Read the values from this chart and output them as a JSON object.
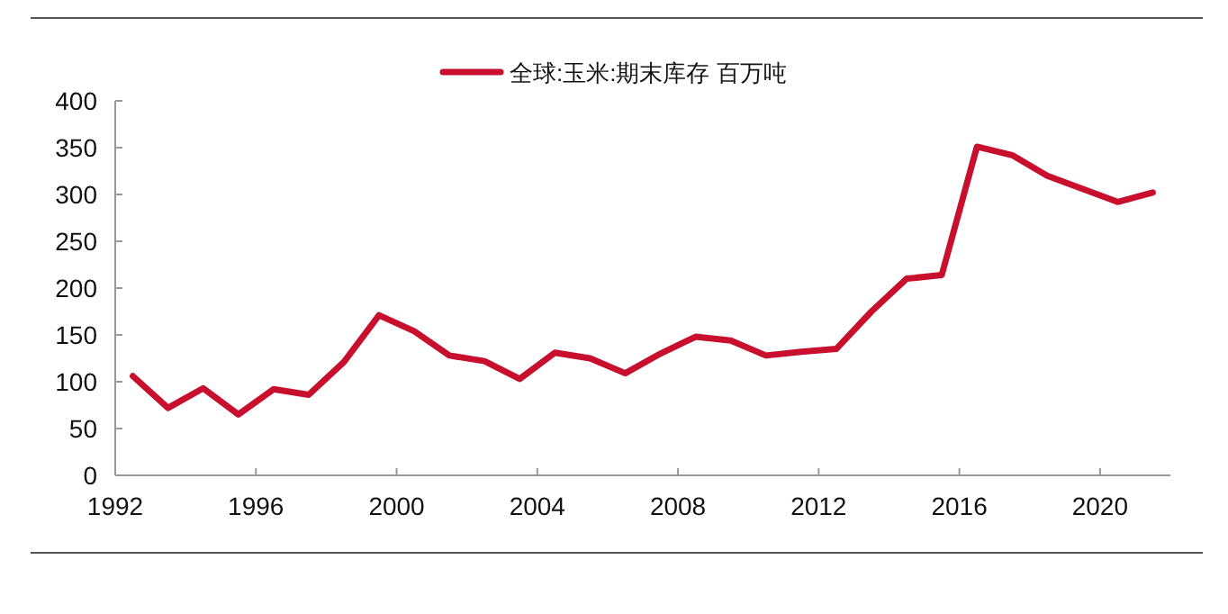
{
  "chart_data": {
    "type": "line",
    "x": [
      1992.5,
      1993.5,
      1994.5,
      1995.5,
      1996.5,
      1997.5,
      1998.5,
      1999.5,
      2000.5,
      2001.5,
      2002.5,
      2003.5,
      2004.5,
      2005.5,
      2006.5,
      2007.5,
      2008.5,
      2009.5,
      2010.5,
      2011.5,
      2012.5,
      2013.5,
      2014.5,
      2015.5,
      2016.5,
      2017.5,
      2018.5,
      2019.5,
      2020.5,
      2021.5
    ],
    "series": [
      {
        "name": "全球:玉米:期末库存 百万吨",
        "color": "#c8102e",
        "values": [
          106,
          72,
          93,
          65,
          92,
          86,
          121,
          171,
          154,
          128,
          122,
          103,
          131,
          125,
          109,
          130,
          148,
          144,
          128,
          132,
          135,
          175,
          210,
          214,
          351,
          342,
          320,
          306,
          292,
          302
        ]
      }
    ],
    "xlim": [
      1992,
      2022
    ],
    "xticks": [
      1992,
      1996,
      2000,
      2004,
      2008,
      2012,
      2016,
      2020
    ],
    "ylim": [
      0,
      400
    ],
    "yticks": [
      0,
      50,
      100,
      150,
      200,
      250,
      300,
      350,
      400
    ],
    "legend": "top",
    "marker": "none",
    "line_style": "solid",
    "grid": false
  }
}
